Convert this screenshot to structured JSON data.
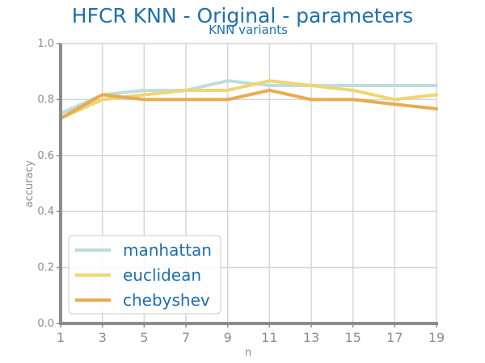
{
  "chart_data": {
    "type": "line",
    "title": "HFCR KNN - Original - parameters",
    "subtitle": "KNN variants",
    "xlabel": "n",
    "ylabel": "accuracy",
    "x": [
      1,
      3,
      5,
      7,
      9,
      11,
      13,
      15,
      17,
      19
    ],
    "xticks": [
      "1",
      "3",
      "5",
      "7",
      "9",
      "11",
      "13",
      "15",
      "17",
      "19"
    ],
    "yticks": [
      "0.0",
      "0.2",
      "0.4",
      "0.6",
      "0.8",
      "1.0"
    ],
    "xlim": [
      1,
      19
    ],
    "ylim": [
      0,
      1
    ],
    "grid": true,
    "legend_position": "lower-left",
    "series": [
      {
        "name": "manhattan",
        "color": "#bcdde0",
        "values": [
          0.75,
          0.817,
          0.833,
          0.833,
          0.867,
          0.85,
          0.85,
          0.85,
          0.85,
          0.85
        ]
      },
      {
        "name": "euclidean",
        "color": "#f0d570",
        "values": [
          0.733,
          0.8,
          0.817,
          0.833,
          0.833,
          0.867,
          0.85,
          0.833,
          0.8,
          0.817
        ]
      },
      {
        "name": "chebyshev",
        "color": "#e8ab4e",
        "values": [
          0.733,
          0.817,
          0.8,
          0.8,
          0.8,
          0.833,
          0.8,
          0.8,
          0.783,
          0.767
        ]
      }
    ]
  }
}
